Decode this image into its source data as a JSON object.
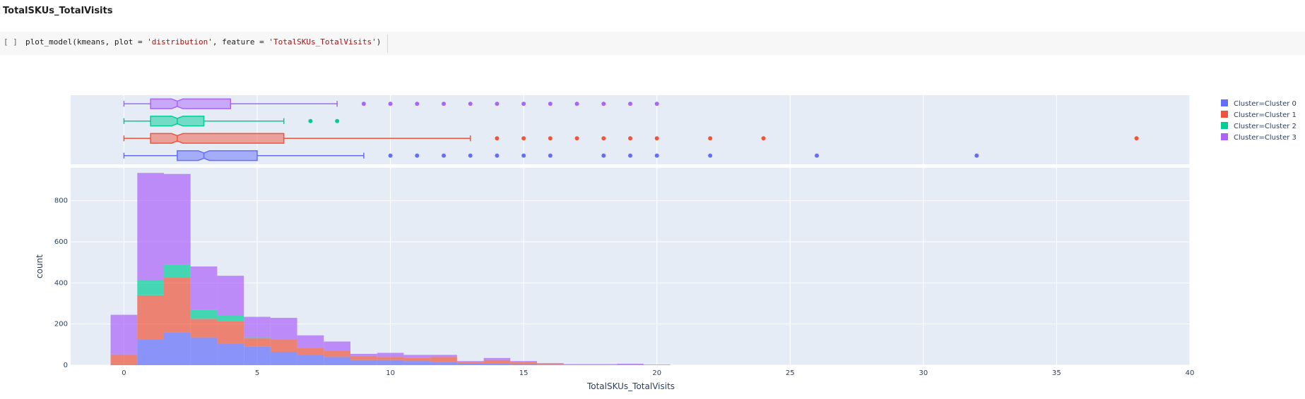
{
  "heading": "TotalSKUs_TotalVisits",
  "cell": {
    "prompt": "[ ]",
    "code_prefix": "plot_model(kmeans, plot = ",
    "code_str1": "'distribution'",
    "code_mid": ", feature = ",
    "code_str2": "'TotalSKUs_TotalVisits'",
    "code_suffix": ")"
  },
  "chart_data": {
    "type": "bar",
    "xlabel": "TotalSKUs_TotalVisits",
    "ylabel": "count",
    "xlim": [
      -2,
      40
    ],
    "ylim": [
      0,
      960
    ],
    "xticks": [
      0,
      5,
      10,
      15,
      20,
      25,
      30,
      35,
      40
    ],
    "yticks": [
      0,
      200,
      400,
      600,
      800
    ],
    "bar_mode": "stack",
    "bin_width": 1,
    "bins_start": [
      -0.5,
      0.5,
      1.5,
      2.5,
      3.5,
      4.5,
      5.5,
      6.5,
      7.5,
      8.5,
      9.5,
      10.5,
      11.5,
      12.5,
      13.5,
      14.5,
      15.5,
      16.5,
      17.5,
      18.5,
      19.5
    ],
    "series": [
      {
        "name": "Cluster=Cluster 0",
        "color": "#636efa",
        "values": [
          0,
          125,
          160,
          135,
          105,
          90,
          65,
          50,
          40,
          25,
          25,
          20,
          15,
          10,
          10,
          5,
          3,
          2,
          2,
          2,
          1
        ]
      },
      {
        "name": "Cluster=Cluster 1",
        "color": "#ef553b",
        "values": [
          52,
          215,
          265,
          90,
          110,
          40,
          60,
          35,
          30,
          20,
          15,
          15,
          25,
          5,
          15,
          10,
          3,
          1,
          1,
          1,
          1
        ]
      },
      {
        "name": "Cluster=Cluster 2",
        "color": "#00cc96",
        "values": [
          0,
          75,
          65,
          45,
          25,
          5,
          0,
          0,
          0,
          0,
          0,
          0,
          0,
          0,
          0,
          0,
          0,
          0,
          0,
          0,
          0
        ]
      },
      {
        "name": "Cluster=Cluster 3",
        "color": "#ab63fa",
        "values": [
          193,
          520,
          440,
          210,
          195,
          100,
          105,
          60,
          45,
          10,
          20,
          15,
          10,
          5,
          10,
          5,
          4,
          2,
          2,
          4,
          1
        ]
      }
    ],
    "boxes": [
      {
        "name": "Cluster=Cluster 3",
        "color": "#ab63fa",
        "min": 0,
        "q1": 1,
        "median": 2,
        "q3": 4,
        "max": 8,
        "outliers": [
          9,
          10,
          11,
          12,
          13,
          14,
          15,
          16,
          17,
          18,
          19,
          20
        ]
      },
      {
        "name": "Cluster=Cluster 2",
        "color": "#00cc96",
        "min": 0,
        "q1": 1,
        "median": 2,
        "q3": 3,
        "max": 6,
        "outliers": [
          7,
          8
        ]
      },
      {
        "name": "Cluster=Cluster 1",
        "color": "#ef553b",
        "min": 0,
        "q1": 1,
        "median": 2,
        "q3": 6,
        "max": 13,
        "outliers": [
          14,
          15,
          16,
          17,
          18,
          19,
          20,
          22,
          24,
          38
        ]
      },
      {
        "name": "Cluster=Cluster 0",
        "color": "#636efa",
        "min": 0,
        "q1": 2,
        "median": 3,
        "q3": 5,
        "max": 9,
        "outliers": [
          10,
          11,
          12,
          13,
          14,
          15,
          16,
          18,
          19,
          20,
          22,
          26,
          32
        ]
      }
    ],
    "legend": {
      "position": "top-right",
      "entries": [
        "Cluster=Cluster 0",
        "Cluster=Cluster 1",
        "Cluster=Cluster 2",
        "Cluster=Cluster 3"
      ],
      "colors": [
        "#636efa",
        "#ef553b",
        "#00cc96",
        "#ab63fa"
      ]
    },
    "grid": true,
    "plot_bg": "#e5ecf6"
  }
}
